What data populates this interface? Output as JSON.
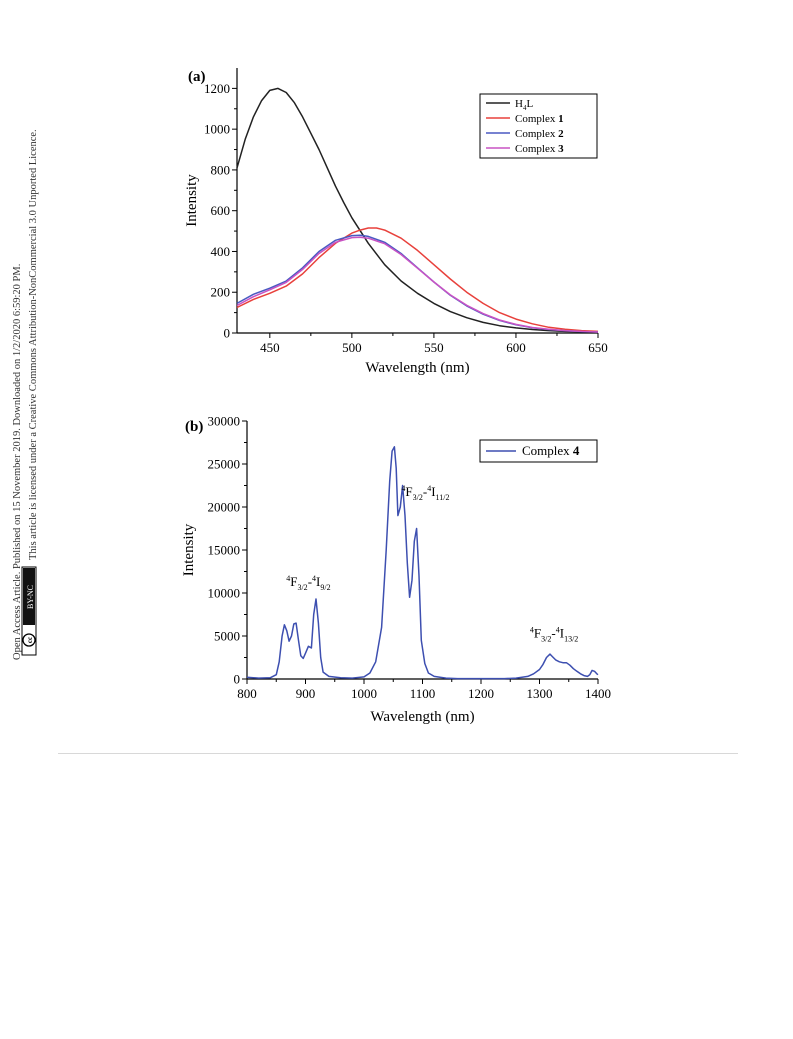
{
  "side_notice": {
    "line1": "Open Access Article. Published on 15 November 2019. Downloaded on 1/2/2020 6:59:20 PM.",
    "line2": "This article is licensed under a Creative Commons Attribution-NonCommercial 3.0 Unported Licence.",
    "license_badge": "BY-NC",
    "cc_label": "cc"
  },
  "chart_data": [
    {
      "panel_label": "(a)",
      "type": "line",
      "xlabel": "Wavelength (nm)",
      "ylabel": "Intensity",
      "xlim": [
        430,
        650
      ],
      "ylim": [
        0,
        1300
      ],
      "xticks": [
        450,
        500,
        550,
        600,
        650
      ],
      "yticks": [
        0,
        200,
        400,
        600,
        800,
        1000,
        1200
      ],
      "grid": false,
      "legend_position": "top-right",
      "series": [
        {
          "name": "H",
          "name_sub": "4",
          "name_suffix": "L",
          "name_bold": "",
          "color": "#222222",
          "x": [
            430,
            435,
            440,
            445,
            450,
            455,
            460,
            465,
            470,
            475,
            480,
            485,
            490,
            495,
            500,
            510,
            520,
            530,
            540,
            550,
            560,
            570,
            580,
            590,
            600,
            610,
            620,
            630,
            640,
            650
          ],
          "y": [
            810,
            950,
            1060,
            1140,
            1190,
            1200,
            1180,
            1130,
            1060,
            980,
            900,
            810,
            720,
            640,
            565,
            440,
            335,
            255,
            195,
            145,
            105,
            75,
            52,
            36,
            25,
            17,
            12,
            8,
            6,
            4
          ]
        },
        {
          "name": "Complex ",
          "name_sub": "",
          "name_suffix": "",
          "name_bold": "1",
          "color": "#e8413c",
          "x": [
            430,
            440,
            450,
            460,
            470,
            480,
            490,
            500,
            505,
            510,
            515,
            520,
            530,
            540,
            550,
            560,
            570,
            580,
            590,
            600,
            610,
            620,
            630,
            640,
            650
          ],
          "y": [
            125,
            165,
            195,
            230,
            290,
            370,
            440,
            490,
            505,
            515,
            515,
            505,
            465,
            405,
            335,
            265,
            200,
            145,
            100,
            68,
            45,
            28,
            18,
            12,
            8
          ]
        },
        {
          "name": "Complex ",
          "name_sub": "",
          "name_suffix": "",
          "name_bold": "2",
          "color": "#4a59c2",
          "x": [
            430,
            440,
            450,
            460,
            470,
            480,
            490,
            500,
            505,
            510,
            520,
            530,
            540,
            550,
            560,
            570,
            580,
            590,
            600,
            610,
            620,
            630,
            640,
            650
          ],
          "y": [
            145,
            190,
            220,
            255,
            320,
            400,
            455,
            478,
            480,
            474,
            445,
            390,
            320,
            250,
            185,
            133,
            92,
            62,
            40,
            26,
            17,
            11,
            7,
            5
          ]
        },
        {
          "name": "Complex ",
          "name_sub": "",
          "name_suffix": "",
          "name_bold": "3",
          "color": "#c853c4",
          "x": [
            430,
            440,
            450,
            460,
            470,
            480,
            490,
            500,
            505,
            510,
            520,
            530,
            540,
            550,
            560,
            570,
            580,
            590,
            600,
            610,
            620,
            630,
            640,
            650
          ],
          "y": [
            135,
            178,
            212,
            248,
            312,
            390,
            445,
            468,
            470,
            465,
            438,
            385,
            318,
            250,
            187,
            136,
            95,
            64,
            42,
            27,
            18,
            12,
            8,
            5
          ]
        }
      ]
    },
    {
      "panel_label": "(b)",
      "type": "line",
      "xlabel": "Wavelength (nm)",
      "ylabel": "Intensity",
      "xlim": [
        800,
        1400
      ],
      "ylim": [
        0,
        30000
      ],
      "xticks": [
        800,
        900,
        1000,
        1100,
        1200,
        1300,
        1400
      ],
      "yticks": [
        0,
        5000,
        10000,
        15000,
        20000,
        25000,
        30000
      ],
      "grid": false,
      "legend_position": "top-right",
      "series": [
        {
          "name": "Complex ",
          "name_sub": "",
          "name_suffix": "",
          "name_bold": "4",
          "color": "#3d4fb0",
          "x": [
            800,
            820,
            840,
            850,
            855,
            860,
            864,
            868,
            872,
            876,
            880,
            884,
            888,
            892,
            896,
            900,
            905,
            910,
            914,
            918,
            922,
            926,
            930,
            940,
            960,
            980,
            1000,
            1010,
            1020,
            1030,
            1038,
            1044,
            1048,
            1052,
            1055,
            1058,
            1062,
            1066,
            1070,
            1074,
            1078,
            1082,
            1086,
            1090,
            1094,
            1098,
            1104,
            1110,
            1120,
            1140,
            1160,
            1180,
            1200,
            1220,
            1240,
            1260,
            1280,
            1290,
            1300,
            1306,
            1312,
            1318,
            1322,
            1328,
            1334,
            1340,
            1346,
            1352,
            1358,
            1364,
            1370,
            1376,
            1382,
            1386,
            1390,
            1394,
            1398,
            1400
          ],
          "y": [
            200,
            100,
            150,
            500,
            2000,
            5000,
            6300,
            5600,
            4400,
            5000,
            6400,
            6500,
            4500,
            2700,
            2400,
            3000,
            3800,
            3600,
            7500,
            9300,
            6500,
            2500,
            800,
            300,
            150,
            100,
            250,
            700,
            2000,
            6000,
            15000,
            23000,
            26500,
            27000,
            24500,
            19000,
            20000,
            22500,
            19000,
            13500,
            9500,
            11500,
            16000,
            17500,
            12000,
            4500,
            1800,
            700,
            300,
            100,
            50,
            50,
            50,
            50,
            50,
            100,
            300,
            600,
            1100,
            1700,
            2500,
            2900,
            2600,
            2200,
            2000,
            1900,
            1900,
            1600,
            1200,
            900,
            600,
            400,
            300,
            500,
            1000,
            900,
            600,
            500
          ]
        }
      ],
      "annotations": [
        {
          "sup": "4",
          "main": "F",
          "sub": "3/2",
          "dash": "-",
          "sup2": "4",
          "main2": "I",
          "sub2": "9/2",
          "x": 905,
          "y": 10800
        },
        {
          "sup": "4",
          "main": "F",
          "sub": "3/2",
          "dash": "-",
          "sup2": "4",
          "main2": "I",
          "sub2": "11/2",
          "x": 1105,
          "y": 21300
        },
        {
          "sup": "4",
          "main": "F",
          "sub": "3/2",
          "dash": "-",
          "sup2": "4",
          "main2": "I",
          "sub2": "13/2",
          "x": 1325,
          "y": 4800
        }
      ]
    }
  ]
}
